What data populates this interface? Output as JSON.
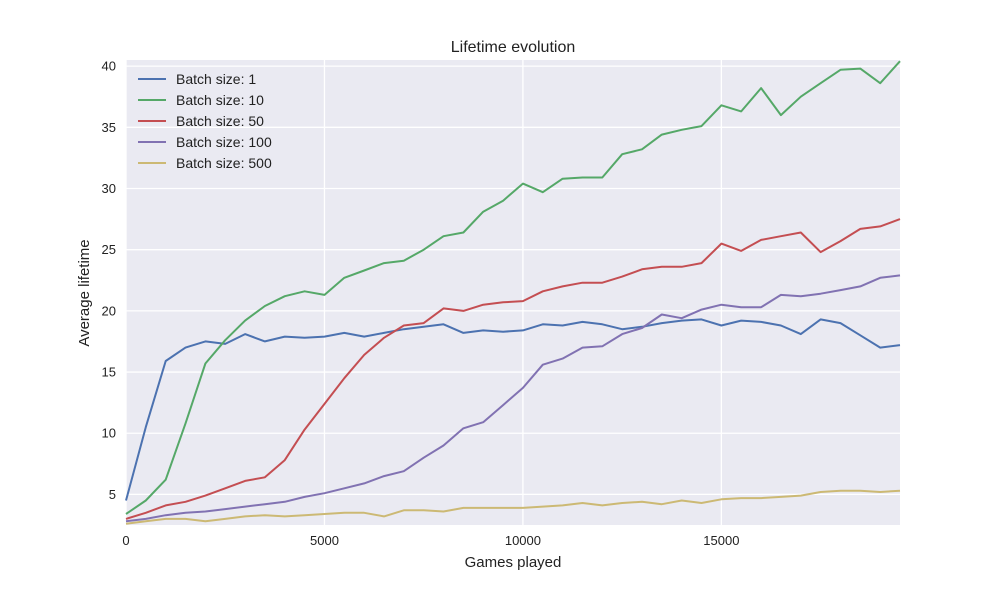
{
  "chart_data": {
    "type": "line",
    "title": "Lifetime evolution",
    "xlabel": "Games played",
    "ylabel": "Average lifetime",
    "xlim": [
      0,
      19500
    ],
    "ylim": [
      2.5,
      40.5
    ],
    "xticks": [
      0,
      5000,
      10000,
      15000
    ],
    "yticks": [
      5,
      10,
      15,
      20,
      25,
      30,
      35,
      40
    ],
    "grid": true,
    "legend_position": "top-left",
    "x": [
      0,
      500,
      1000,
      1500,
      2000,
      2500,
      3000,
      3500,
      4000,
      4500,
      5000,
      5500,
      6000,
      6500,
      7000,
      7500,
      8000,
      8500,
      9000,
      9500,
      10000,
      10500,
      11000,
      11500,
      12000,
      12500,
      13000,
      13500,
      14000,
      14500,
      15000,
      15500,
      16000,
      16500,
      17000,
      17500,
      18000,
      18500,
      19000,
      19500
    ],
    "series": [
      {
        "name": "Batch size: 1",
        "color": "#4c72b0",
        "values": [
          4.5,
          10.5,
          15.9,
          17.0,
          17.5,
          17.3,
          18.1,
          17.5,
          17.9,
          17.8,
          17.9,
          18.2,
          17.9,
          18.2,
          18.5,
          18.7,
          18.9,
          18.2,
          18.4,
          18.3,
          18.4,
          18.9,
          18.8,
          19.1,
          18.9,
          18.5,
          18.7,
          19.0,
          19.2,
          19.3,
          18.8,
          19.2,
          19.1,
          18.8,
          18.1,
          19.3,
          19.0,
          18.0,
          17.0,
          17.2
        ]
      },
      {
        "name": "Batch size: 10",
        "color": "#55a868",
        "values": [
          3.4,
          4.5,
          6.2,
          10.8,
          15.7,
          17.6,
          19.2,
          20.4,
          21.2,
          21.6,
          21.3,
          22.7,
          23.3,
          23.9,
          24.1,
          25.0,
          26.1,
          26.4,
          28.1,
          29.0,
          30.4,
          29.7,
          30.8,
          30.9,
          30.9,
          32.8,
          33.2,
          34.4,
          34.8,
          35.1,
          36.8,
          36.3,
          38.2,
          36.0,
          37.5,
          38.6,
          39.7,
          39.8,
          38.6,
          40.4
        ]
      },
      {
        "name": "Batch size: 50",
        "color": "#c44e52",
        "values": [
          3.0,
          3.5,
          4.1,
          4.4,
          4.9,
          5.5,
          6.1,
          6.4,
          7.8,
          10.3,
          12.4,
          14.5,
          16.4,
          17.8,
          18.8,
          19.0,
          20.2,
          20.0,
          20.5,
          20.7,
          20.8,
          21.6,
          22.0,
          22.3,
          22.3,
          22.8,
          23.4,
          23.6,
          23.6,
          23.9,
          25.5,
          24.9,
          25.8,
          26.1,
          26.4,
          24.8,
          25.7,
          26.7,
          26.9,
          27.5
        ]
      },
      {
        "name": "Batch size: 100",
        "color": "#8172b2",
        "values": [
          2.8,
          3.0,
          3.3,
          3.5,
          3.6,
          3.8,
          4.0,
          4.2,
          4.4,
          4.8,
          5.1,
          5.5,
          5.9,
          6.5,
          6.9,
          8.0,
          9.0,
          10.4,
          10.9,
          12.3,
          13.7,
          15.6,
          16.1,
          17.0,
          17.1,
          18.1,
          18.6,
          19.7,
          19.4,
          20.1,
          20.5,
          20.3,
          20.3,
          21.3,
          21.2,
          21.4,
          21.7,
          22.0,
          22.7,
          22.9
        ]
      },
      {
        "name": "Batch size: 500",
        "color": "#ccb974",
        "values": [
          2.6,
          2.8,
          3.0,
          3.0,
          2.8,
          3.0,
          3.2,
          3.3,
          3.2,
          3.3,
          3.4,
          3.5,
          3.5,
          3.2,
          3.7,
          3.7,
          3.6,
          3.9,
          3.9,
          3.9,
          3.9,
          4.0,
          4.1,
          4.3,
          4.1,
          4.3,
          4.4,
          4.2,
          4.5,
          4.3,
          4.6,
          4.7,
          4.7,
          4.8,
          4.9,
          5.2,
          5.3,
          5.3,
          5.2,
          5.3
        ]
      }
    ]
  }
}
